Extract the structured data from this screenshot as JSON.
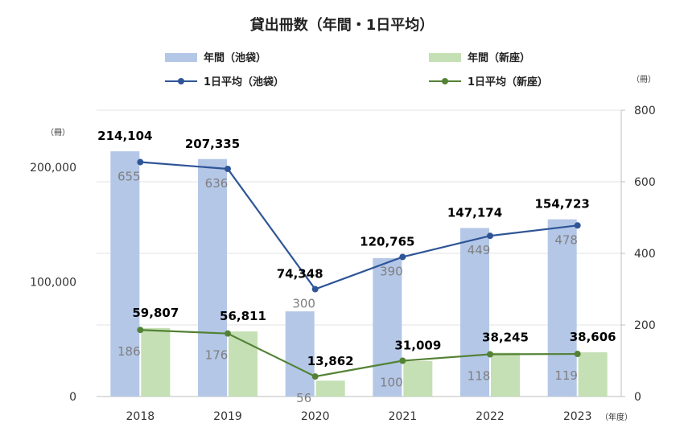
{
  "chart_data": {
    "type": "bar",
    "title": "貸出冊数（年間・1日平均）",
    "categories": [
      "2018",
      "2019",
      "2020",
      "2021",
      "2022",
      "2023"
    ],
    "x_unit": "（年度）",
    "y_left_unit": "（冊）",
    "y_right_unit": "（冊）",
    "ylim_left": [
      0,
      250000
    ],
    "ylim_right": [
      0,
      800
    ],
    "y_left_ticks": [
      0,
      100000,
      200000
    ],
    "y_left_tick_labels": [
      "0",
      "100,000",
      "200,000"
    ],
    "y_right_ticks": [
      0,
      200,
      400,
      600,
      800
    ],
    "y_right_tick_labels": [
      "0",
      "200",
      "400",
      "600",
      "800"
    ],
    "legend_position": "top",
    "grid": "horizontal",
    "series": [
      {
        "name": "年間（池袋）",
        "kind": "bar",
        "axis": "left",
        "color": "#b4c7e7",
        "values": [
          214104,
          207335,
          74348,
          120765,
          147174,
          154723
        ],
        "labels": [
          "214,104",
          "207,335",
          "74,348",
          "120,765",
          "147,174",
          "154,723"
        ],
        "label_color": "#000000"
      },
      {
        "name": "年間（新座）",
        "kind": "bar",
        "axis": "left",
        "color": "#c5e0b4",
        "values": [
          59807,
          56811,
          13862,
          31009,
          38245,
          38606
        ],
        "labels": [
          "59,807",
          "56,811",
          "13,862",
          "31,009",
          "38,245",
          "38,606"
        ],
        "label_color": "#000000"
      },
      {
        "name": "1日平均（池袋）",
        "kind": "line",
        "axis": "right",
        "color": "#2f5597",
        "values": [
          655,
          636,
          300,
          390,
          449,
          478
        ],
        "labels": [
          "655",
          "636",
          "300",
          "390",
          "449",
          "478"
        ],
        "label_color": "#7f7f7f"
      },
      {
        "name": "1日平均（新座）",
        "kind": "line",
        "axis": "right",
        "color": "#548235",
        "values": [
          186,
          176,
          56,
          100,
          118,
          119
        ],
        "labels": [
          "186",
          "176",
          "56",
          "100",
          "118",
          "119"
        ],
        "label_color": "#7f7f7f"
      }
    ]
  }
}
